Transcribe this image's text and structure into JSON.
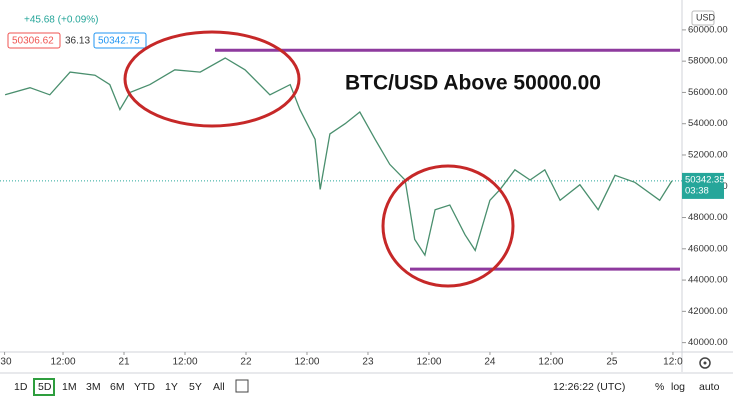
{
  "header": {
    "change": "+45.68 (+0.09%)",
    "bid": "50306.62",
    "spread": "36.13",
    "ask": "50342.75",
    "currency": "USD",
    "countdown": "03:38"
  },
  "toolbar": {
    "ranges": [
      "1D",
      "5D",
      "1M",
      "3M",
      "6M",
      "YTD",
      "1Y",
      "5Y",
      "All"
    ],
    "clock": "12:26:22 (UTC)",
    "options": [
      "%",
      "log",
      "auto"
    ]
  },
  "chart_data": {
    "type": "line",
    "annotation": "BTC/USD Above 50000.00",
    "x": [
      -23.4,
      -18.5,
      -14.6,
      -10.6,
      -5.7,
      -2.8,
      -0.8,
      1.2,
      5.1,
      10.0,
      15.0,
      19.9,
      23.8,
      28.7,
      32.7,
      34.6,
      37.6,
      38.6,
      40.5,
      43.5,
      46.4,
      49.4,
      52.3,
      55.3,
      57.2,
      59.2,
      61.2,
      64.1,
      67.1,
      69.1,
      72.0,
      74.0,
      76.9,
      79.9,
      82.8,
      85.8,
      89.7,
      93.3,
      96.6,
      100.5,
      105.4,
      107.8
    ],
    "series": [
      {
        "color": "#4a8f6e",
        "values": [
          55850,
          56300,
          55850,
          57300,
          57100,
          56500,
          54900,
          56000,
          56500,
          57450,
          57300,
          58200,
          57450,
          55850,
          56500,
          54900,
          53000,
          49800,
          53350,
          54000,
          54750,
          53000,
          51400,
          50400,
          46600,
          45600,
          48500,
          48800,
          46900,
          45900,
          49100,
          49800,
          51050,
          50400,
          51050,
          49100,
          50100,
          48500,
          50700,
          50250,
          49100,
          50342
        ]
      }
    ],
    "last_price": 50342.35,
    "levels": [
      {
        "value": 58700,
        "color": "#8e3a9e"
      },
      {
        "value": 44700,
        "color": "#8e3a9e"
      }
    ],
    "xlim": [
      -24.4,
      109
    ],
    "ylim": [
      39400,
      61400
    ],
    "xticks": [
      {
        "value": -23.5,
        "label": ":30"
      },
      {
        "value": -12,
        "label": "12:00"
      },
      {
        "value": 0,
        "label": "21"
      },
      {
        "value": 12,
        "label": "12:00"
      },
      {
        "value": 24,
        "label": "22"
      },
      {
        "value": 36,
        "label": "12:00"
      },
      {
        "value": 48,
        "label": "23"
      },
      {
        "value": 60,
        "label": "12:00"
      },
      {
        "value": 72,
        "label": "24"
      },
      {
        "value": 84,
        "label": "12:00"
      },
      {
        "value": 96,
        "label": "25"
      },
      {
        "value": 108,
        "label": "12:0"
      }
    ],
    "yticks": [
      {
        "value": 40000,
        "label": "40000.00"
      },
      {
        "value": 42000,
        "label": "42000.00"
      },
      {
        "value": 44000,
        "label": "44000.00"
      },
      {
        "value": 46000,
        "label": "46000.00"
      },
      {
        "value": 48000,
        "label": "48000.00"
      },
      {
        "value": 50000,
        "label": "50000.00"
      },
      {
        "value": 52000,
        "label": "52000.00"
      },
      {
        "value": 54000,
        "label": "54000.00"
      },
      {
        "value": 56000,
        "label": "56000.00"
      },
      {
        "value": 58000,
        "label": "58000.00"
      },
      {
        "value": 60000,
        "label": "60000.00"
      }
    ]
  }
}
